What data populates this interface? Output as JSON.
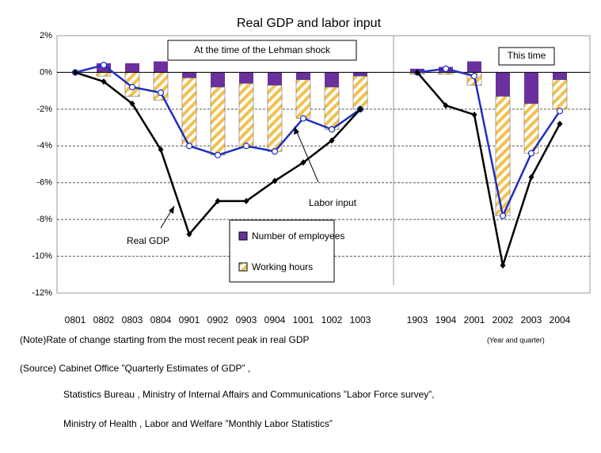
{
  "chart_data": {
    "type": "bar_line",
    "title": "Real GDP and labor input",
    "categories": [
      "0801",
      "0802",
      "0803",
      "0804",
      "0901",
      "0902",
      "0903",
      "0904",
      "1001",
      "1002",
      "1003",
      null,
      "1903",
      "1904",
      "2001",
      "2002",
      "2003",
      "2004"
    ],
    "ylim": [
      -12,
      2
    ],
    "yticks": [
      {
        "value": 2,
        "label": "2%"
      },
      {
        "value": 0,
        "label": "0%"
      },
      {
        "value": -2,
        "label": "-2%"
      },
      {
        "value": -4,
        "label": "-4%"
      },
      {
        "value": -6,
        "label": "-6%"
      },
      {
        "value": -8,
        "label": "-8%"
      },
      {
        "value": -10,
        "label": "-10%"
      },
      {
        "value": -12,
        "label": "-12%"
      }
    ],
    "grid": true,
    "bar_series": [
      {
        "name": "Number of employees",
        "color": "#6b2f9e",
        "values": [
          0,
          0.5,
          0.5,
          0.6,
          -0.3,
          -0.8,
          -0.6,
          -0.7,
          -0.4,
          -0.8,
          -0.2,
          null,
          0.2,
          0.3,
          0.6,
          -1.3,
          -1.7,
          -0.4
        ]
      },
      {
        "name": "Working hours",
        "color": "#f2c14e",
        "values": [
          0,
          -0.2,
          -1.3,
          -1.5,
          -3.7,
          -3.7,
          -3.5,
          -3.6,
          -2.1,
          -2.3,
          -1.8,
          null,
          -0.1,
          -0.1,
          -0.7,
          -6.5,
          -2.7,
          -1.6
        ]
      }
    ],
    "line_series": [
      {
        "name": "Labor input",
        "color": "#1f2fbf",
        "values": [
          0,
          0.4,
          -0.8,
          -1.1,
          -4.0,
          -4.5,
          -4.0,
          -4.3,
          -2.5,
          -3.1,
          -2.0,
          null,
          0,
          0.2,
          -0.2,
          -7.8,
          -4.4,
          -2.1
        ]
      },
      {
        "name": "Real GDP",
        "color": "#000000",
        "values": [
          0,
          -0.5,
          -1.7,
          -4.2,
          -8.8,
          -7.0,
          -7.0,
          -5.9,
          -4.9,
          -3.7,
          -2.0,
          null,
          0,
          -1.8,
          -2.3,
          -10.5,
          -5.7,
          -2.8
        ]
      }
    ],
    "annotations": [
      "At the time of the Lehman shock",
      "This time",
      "(Year and quarter)"
    ],
    "notes": [
      "(Note)Rate of change starting from the most recent peak in real GDP",
      "(Source) Cabinet Office ”Quarterly Estimates of GDP” ,",
      "Statistics Bureau , Ministry of Internal Affairs and Communications ”Labor Force survey”,",
      "Ministry of Health , Labor and Welfare ”Monthly Labor Statistics”"
    ]
  }
}
